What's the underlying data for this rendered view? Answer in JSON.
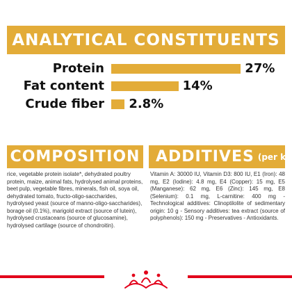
{
  "analytical": {
    "title": "ANALYTICAL CONSTITUENTS",
    "items": [
      {
        "label": "Protein",
        "value": "27%",
        "percent": 27
      },
      {
        "label": "Fat content",
        "value": "14%",
        "percent": 14
      },
      {
        "label": "Crude fiber",
        "value": "2.8%",
        "percent": 2.8
      }
    ]
  },
  "composition": {
    "title": "COMPOSITION",
    "text": "rice, vegetable protein isolate*, dehydrated poultry protein, maize, animal fats, hydrolysed animal proteins, beet pulp, vegetable fibres, minerals, fish oil, soya oil, dehydrated tomato, fructo-oligo-saccharides, hydrolysed yeast (source of manno-oligo-saccharides), borage oil (0.1%), marigold extract (source of lutein), hydrolysed crustaceans (source of glucosamine), hydrolysed cartilage (source of chondroitin)."
  },
  "additives": {
    "title": "ADDITIVES",
    "subtitle": "(per kg)",
    "text": "Vitamin A: 30000 IU, Vitamin D3: 800 IU, E1 (Iron): 48 mg, E2 (Iodine): 4.8 mg, E4 (Copper): 15 mg, E5 (Manganese): 62 mg, E6 (Zinc): 145 mg, E8 (Selenium): 0.1 mg, L-carnitine: 400 mg - Technological additives: Clinoptilolite of sedimentary origin: 10 g - Sensory additives: tea extract (source of polyphenols): 150 mg - Preservatives - Antioxidants."
  },
  "colors": {
    "accent": "#e3ac38",
    "brand_red": "#e2001a"
  },
  "logo": {
    "icon": "royal-canin-crown-icon"
  }
}
